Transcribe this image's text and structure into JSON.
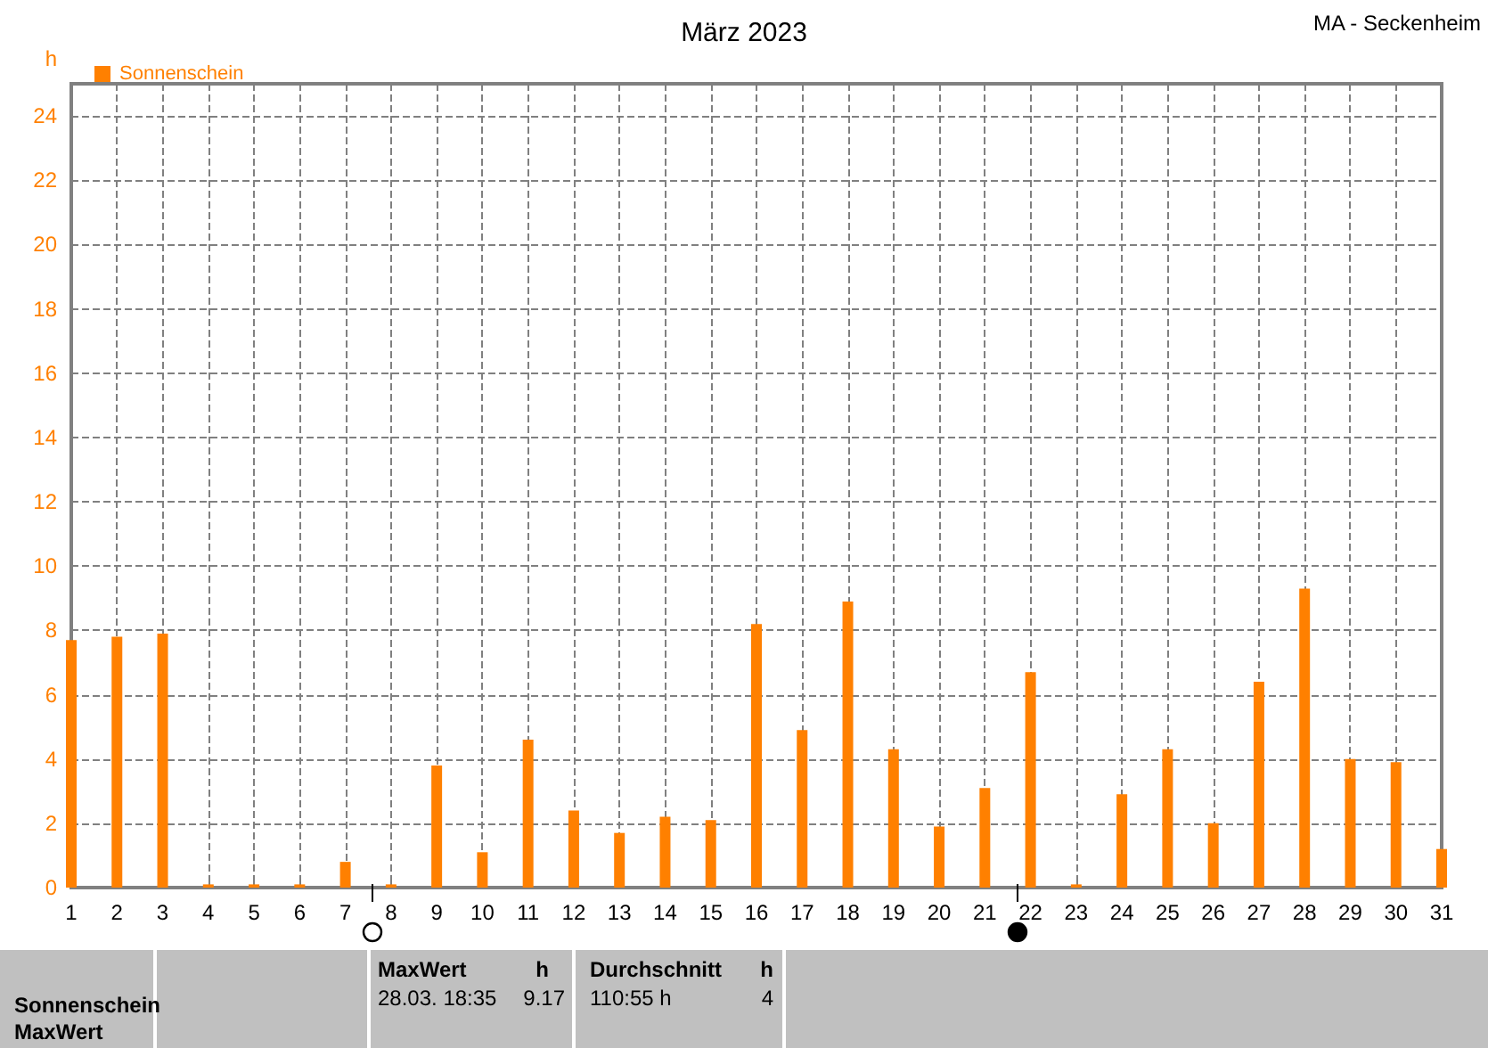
{
  "chart_data": {
    "type": "bar",
    "title": "März 2023",
    "ylabel": "h",
    "x": [
      1,
      2,
      3,
      4,
      5,
      6,
      7,
      8,
      9,
      10,
      11,
      12,
      13,
      14,
      15,
      16,
      17,
      18,
      19,
      20,
      21,
      22,
      23,
      24,
      25,
      26,
      27,
      28,
      29,
      30,
      31
    ],
    "series": [
      {
        "name": "Sonnenschein",
        "color": "#ff8000",
        "values": [
          7.7,
          7.8,
          7.9,
          0.1,
          0.1,
          0.1,
          0.8,
          0.1,
          3.8,
          1.1,
          4.6,
          2.4,
          1.7,
          2.2,
          2.1,
          8.2,
          4.9,
          8.9,
          4.3,
          1.9,
          3.1,
          6.7,
          0.1,
          2.9,
          4.3,
          2.0,
          6.4,
          9.3,
          4.0,
          3.9,
          1.2
        ]
      }
    ],
    "xlim": [
      1,
      31
    ],
    "xticks": [
      1,
      2,
      3,
      4,
      5,
      6,
      7,
      8,
      9,
      10,
      11,
      12,
      13,
      14,
      15,
      16,
      17,
      18,
      19,
      20,
      21,
      22,
      23,
      24,
      25,
      26,
      27,
      28,
      29,
      30,
      31
    ],
    "ylim": [
      0,
      25
    ],
    "yticks": [
      0,
      2,
      4,
      6,
      8,
      10,
      12,
      14,
      16,
      18,
      20,
      22,
      24
    ],
    "grid": true,
    "legend": "top left",
    "annotations": [
      "MA - Seckenheim",
      "Sonnenschein",
      "MaxWert",
      "MaxWert",
      "h",
      "28.03.  18:35",
      "9.17",
      "Durchschnitt",
      "h",
      "110:55 h",
      "4"
    ]
  }
}
